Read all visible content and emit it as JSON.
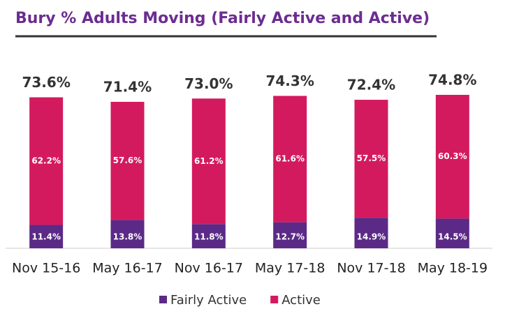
{
  "chart_data": {
    "type": "stacked-bar",
    "title": "Bury % Adults Moving (Fairly Active and Active)",
    "categories": [
      "Nov 15-16",
      "May 16-17",
      "Nov 16-17",
      "May 17-18",
      "Nov 17-18",
      "May 18-19"
    ],
    "series": [
      {
        "name": "Fairly Active",
        "color": "#5b2a86",
        "values": [
          11.4,
          13.8,
          11.8,
          12.7,
          14.9,
          14.5
        ],
        "value_labels": [
          "11.4%",
          "13.8%",
          "11.8%",
          "12.7%",
          "14.9%",
          "14.5%"
        ]
      },
      {
        "name": "Active",
        "color": "#d41a5e",
        "values": [
          62.2,
          57.6,
          61.2,
          61.6,
          57.5,
          60.3
        ],
        "value_labels": [
          "62.2%",
          "57.6%",
          "61.2%",
          "61.6%",
          "57.5%",
          "60.3%"
        ]
      }
    ],
    "totals": [
      73.6,
      71.4,
      73.0,
      74.3,
      72.4,
      74.8
    ],
    "total_labels": [
      "73.6%",
      "71.4%",
      "73.0%",
      "74.3%",
      "72.4%",
      "74.8%"
    ],
    "legend": "bottom"
  }
}
